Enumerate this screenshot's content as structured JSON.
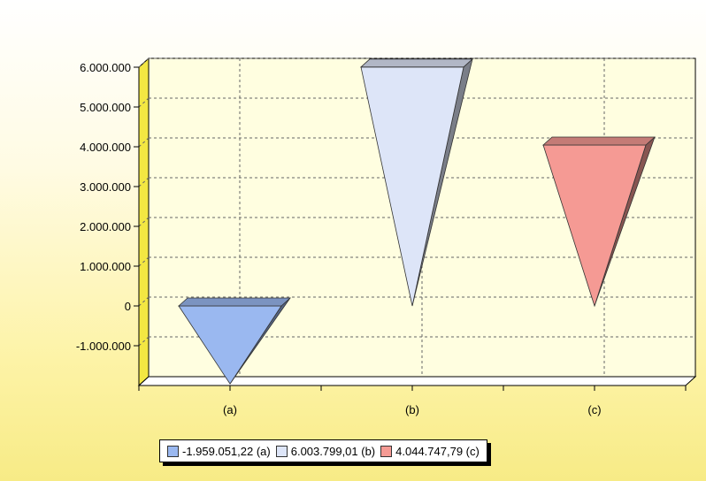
{
  "chart_data": {
    "type": "bar",
    "bar_shape": "inverted-pyramid-3d",
    "categories": [
      "(a)",
      "(b)",
      "(c)"
    ],
    "values": [
      -1959051.22,
      6003799.01,
      4044747.79
    ],
    "ylim": [
      -2000000,
      6000000
    ],
    "yticks": [
      6000000,
      5000000,
      4000000,
      3000000,
      2000000,
      1000000,
      0,
      -1000000
    ],
    "ytick_labels": [
      "6.000.000",
      "5.000.000",
      "4.000.000",
      "3.000.000",
      "2.000.000",
      "1.000.000",
      "0",
      "-1.000.000"
    ],
    "grid": true,
    "legend_position": "bottom",
    "colors": [
      "#9ab8f0",
      "#dde5f8",
      "#f59a94"
    ],
    "title": "",
    "xlabel": "",
    "ylabel": ""
  },
  "legend": {
    "items": [
      {
        "label": "-1.959.051,22 (a)",
        "color": "#9ab8f0"
      },
      {
        "label": "6.003.799,01 (b)",
        "color": "#dde5f8"
      },
      {
        "label": "4.044.747,79 (c)",
        "color": "#f59a94"
      }
    ]
  }
}
